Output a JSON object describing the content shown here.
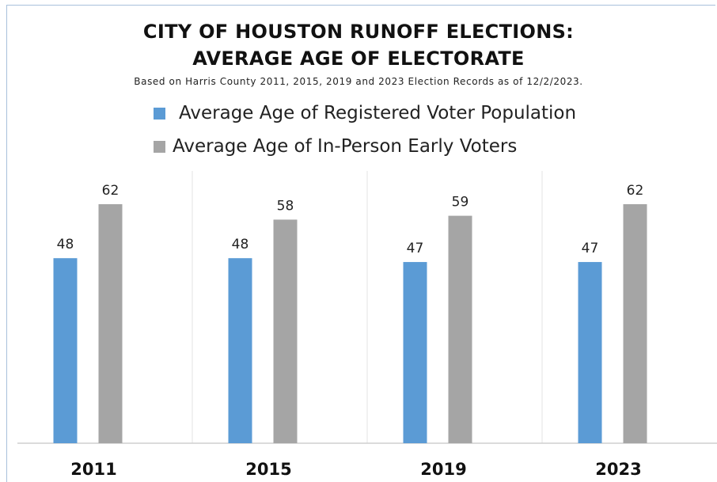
{
  "chart_data": {
    "type": "bar",
    "title": "CITY OF HOUSTON RUNOFF ELECTIONS:",
    "title_line2": "AVERAGE AGE OF ELECTORATE",
    "subtitle": "Based on Harris County 2011, 2015, 2019 and 2023 Election Records as of 12/2/2023.",
    "categories": [
      "2011",
      "2015",
      "2019",
      "2023"
    ],
    "series": [
      {
        "name": "Average Age of Registered Voter Population",
        "color": "#5b9bd5",
        "values": [
          48,
          48,
          47,
          47
        ]
      },
      {
        "name": "Average Age of In-Person Early Voters",
        "color": "#a5a5a5",
        "values": [
          62,
          58,
          59,
          62
        ]
      }
    ],
    "ylim": [
      0,
      80
    ],
    "grid": "vertical separators",
    "legend": "top"
  }
}
